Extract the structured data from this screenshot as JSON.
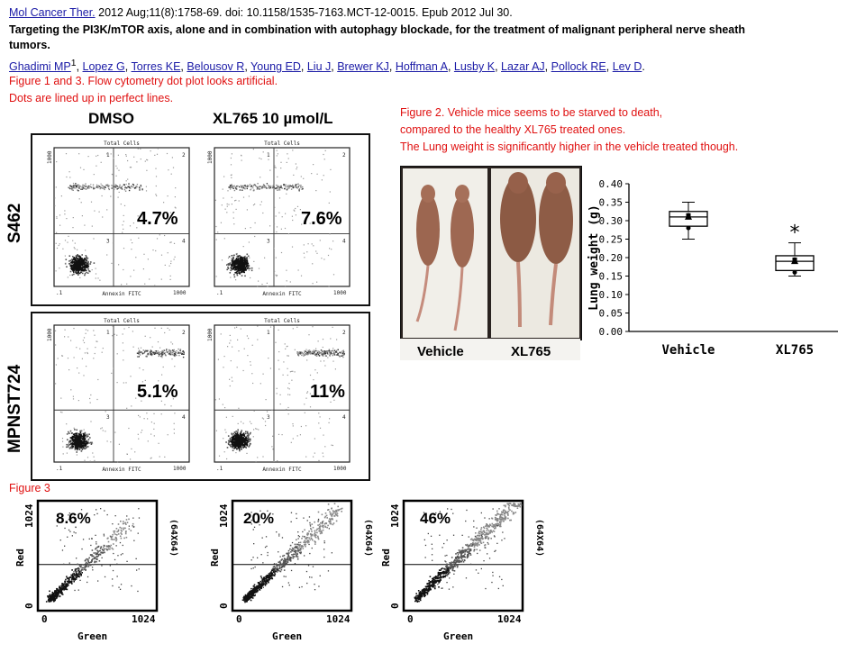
{
  "header": {
    "journal": "Mol Cancer Ther.",
    "citation": " 2012 Aug;11(8):1758-69.  doi: 10.1158/1535-7163.MCT-12-0015.  Epub 2012 Jul 30.",
    "title_line1": "Targeting the PI3K/mTOR axis, alone and in combination with autophagy blockade, for the treatment of malignant peripheral nerve sheath",
    "title_line2": "tumors.",
    "authors": [
      "Ghadimi MP",
      "Lopez G",
      "Torres KE",
      "Belousov R",
      "Young ED",
      "Liu J",
      "Brewer KJ",
      "Hoffman A",
      "Lusby K",
      "Lazar AJ",
      "Pollock RE",
      "Lev D"
    ],
    "first_author_sup": "1"
  },
  "notes": {
    "fig13_line1": "Figure 1 and 3. Flow cytometry dot plot looks artificial.",
    "fig13_line2": "Dots are lined up in perfect lines.",
    "fig2_line1": "Figure 2. Vehicle mice seems to be starved to death,",
    "fig2_line2": "compared to the healthy XL765 treated ones.",
    "fig2_line3": "The Lung weight is significantly higher in the vehicle treated though.",
    "fig3_label": "Figure 3"
  },
  "figure1": {
    "col_dmso": "DMSO",
    "col_xl": "XL765 10 µmol/L",
    "row1": "S462",
    "row2": "MPNST724",
    "plot_top_label": "Total Cells",
    "plot_bottom_label": "Annexin FITC",
    "tick_1": "1",
    "tick_1000": "1000",
    "tick_pt1": ".1",
    "quad_1": "1",
    "quad_2": "2",
    "quad_3": "3",
    "quad_4": "4",
    "pcts": [
      "4.7%",
      "7.6%",
      "5.1%",
      "11%"
    ]
  },
  "figure2": {
    "mouse_vehicle": "Vehicle",
    "mouse_xl": "XL765",
    "chart_data": {
      "type": "box",
      "ylabel": "Lung weight (g)",
      "categories": [
        "Vehicle",
        "XL765"
      ],
      "ylim": [
        0,
        0.4
      ],
      "yticks": [
        "0.40",
        "0.35",
        "0.30",
        "0.25",
        "0.20",
        "0.15",
        "0.10",
        "0.05",
        "0.00"
      ],
      "boxes": [
        {
          "name": "Vehicle",
          "min": 0.25,
          "q1": 0.285,
          "median": 0.31,
          "q3": 0.325,
          "max": 0.35
        },
        {
          "name": "XL765",
          "min": 0.15,
          "q1": 0.165,
          "median": 0.19,
          "q3": 0.205,
          "max": 0.24
        }
      ],
      "annotation": "*"
    }
  },
  "figure3": {
    "ylabel": "Red",
    "xlabel": "Green",
    "side_label": "(64X64)",
    "tick_max": "1024",
    "tick_zero": "0",
    "pcts": [
      "8.6%",
      "20%",
      "46%"
    ]
  }
}
